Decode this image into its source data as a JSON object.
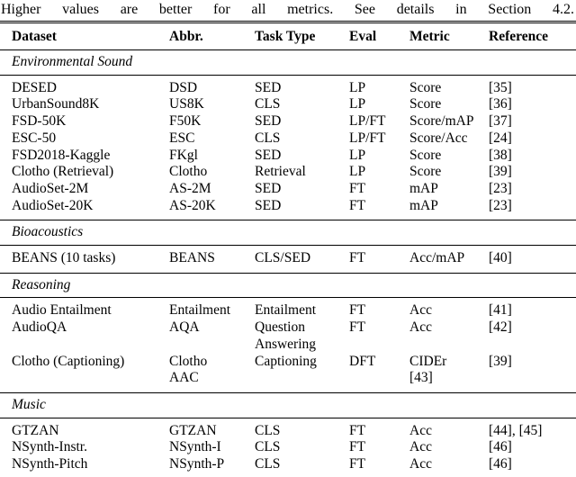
{
  "caption": "Higher values are better for all metrics. See details in Section 4.2.",
  "table": {
    "columns": [
      "Dataset",
      "Abbr.",
      "Task Type",
      "Eval",
      "Metric",
      "Reference"
    ],
    "sections": [
      {
        "label": "Environmental Sound",
        "rows": [
          {
            "cells": [
              "DESED",
              "DSD",
              "SED",
              "LP",
              "Score",
              "[35]"
            ]
          },
          {
            "cells": [
              "UrbanSound8K",
              "US8K",
              "CLS",
              "LP",
              "Score",
              "[36]"
            ]
          },
          {
            "cells": [
              "FSD-50K",
              "F50K",
              "SED",
              "LP/FT",
              "Score/mAP",
              "[37]"
            ]
          },
          {
            "cells": [
              "ESC-50",
              "ESC",
              "CLS",
              "LP/FT",
              "Score/Acc",
              "[24]"
            ]
          },
          {
            "cells": [
              "FSD2018-Kaggle",
              "FKgl",
              "SED",
              "LP",
              "Score",
              "[38]"
            ]
          },
          {
            "cells": [
              "Clotho (Retrieval)",
              "Clotho",
              "Retrieval",
              "LP",
              "Score",
              "[39]"
            ]
          },
          {
            "cells": [
              "AudioSet-2M",
              "AS-2M",
              "SED",
              "FT",
              "mAP",
              "[23]"
            ]
          },
          {
            "cells": [
              "AudioSet-20K",
              "AS-20K",
              "SED",
              "FT",
              "mAP",
              "[23]"
            ]
          }
        ]
      },
      {
        "label": "Bioacoustics",
        "rows": [
          {
            "cells": [
              "BEANS (10 tasks)",
              "BEANS",
              "CLS/SED",
              "FT",
              "Acc/mAP",
              "[40]"
            ]
          }
        ]
      },
      {
        "label": "Reasoning",
        "rows": [
          {
            "cells": [
              "Audio Entailment",
              "Entailment",
              "Entailment",
              "FT",
              "Acc",
              "[41]"
            ]
          },
          {
            "cells": [
              "AudioQA",
              "AQA",
              "Question\nAnswering",
              "FT",
              "Acc",
              "[42]"
            ]
          },
          {
            "cells": [
              "Clotho (Captioning)",
              "Clotho\nAAC",
              "Captioning",
              "DFT",
              "CIDEr\n[43]",
              "[39]"
            ]
          }
        ]
      },
      {
        "label": "Music",
        "rows": [
          {
            "cells": [
              "GTZAN",
              "GTZAN",
              "CLS",
              "FT",
              "Acc",
              "[44], [45]"
            ]
          },
          {
            "cells": [
              "NSynth-Instr.",
              "NSynth-I",
              "CLS",
              "FT",
              "Acc",
              "[46]"
            ]
          },
          {
            "cells": [
              "NSynth-Pitch",
              "NSynth-P",
              "CLS",
              "FT",
              "Acc",
              "[46]"
            ]
          }
        ]
      }
    ]
  }
}
